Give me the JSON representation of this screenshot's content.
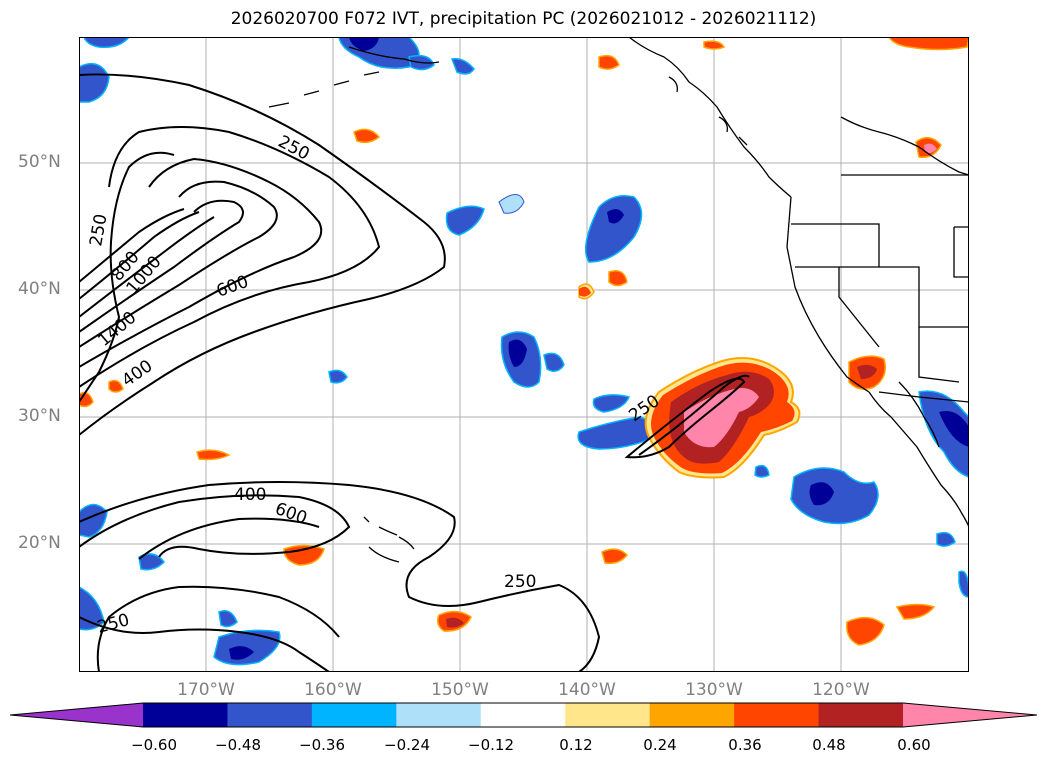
{
  "title": "2026020700 F072 IVT, precipitation PC (2026021012 - 2026021112)",
  "colors": {
    "coast": "#000000",
    "grid": "#b0b0b0",
    "label": "#808080",
    "c_neg6": "#9933cc",
    "c_neg5": "#000099",
    "c_neg4": "#3355cc",
    "c_neg3": "#00b4ff",
    "c_neg2": "#aee0fa",
    "c_zero": "#ffffff",
    "c_pos2": "#ffe68a",
    "c_pos3": "#ffa500",
    "c_pos4": "#ff4500",
    "c_pos5": "#b22222",
    "c_pos6": "#ff85aa"
  },
  "axes": {
    "lat_labels": [
      "50°N",
      "40°N",
      "30°N",
      "20°N"
    ],
    "lon_labels": [
      "170°W",
      "160°W",
      "150°W",
      "140°W",
      "130°W",
      "120°W"
    ]
  },
  "contour_labels": {
    "c250_nw": "250",
    "c250_west": "250",
    "c800": "800",
    "c1000": "1000",
    "c1400": "1400",
    "c600_n": "600",
    "c400_n": "400",
    "c400_s": "400",
    "c600_s": "600",
    "c250_s": "250",
    "c250_sw": "250",
    "c250_e": "250"
  },
  "colorbar": {
    "ticks": [
      "−0.60",
      "−0.48",
      "−0.36",
      "−0.24",
      "−0.12",
      "0.12",
      "0.24",
      "0.36",
      "0.48",
      "0.60"
    ],
    "colors": [
      "#9933cc",
      "#000099",
      "#3355cc",
      "#00b4ff",
      "#aee0fa",
      "#ffffff",
      "#ffe68a",
      "#ffa500",
      "#ff4500",
      "#b22222",
      "#ff85aa"
    ]
  }
}
